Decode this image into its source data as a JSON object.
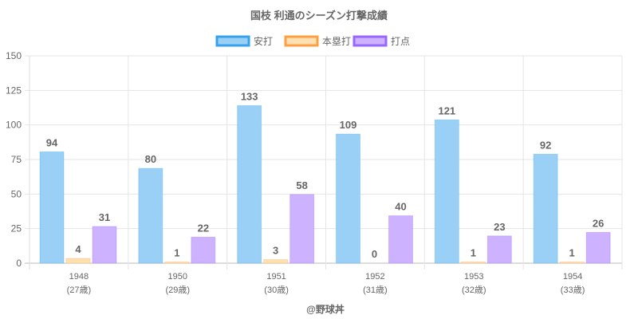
{
  "chart_data": {
    "type": "bar",
    "title": "国枝 利通のシーズン打撃成績",
    "categories": [
      "1948",
      "1950",
      "1951",
      "1952",
      "1953",
      "1954"
    ],
    "sublabels": [
      "(27歳)",
      "(29歳)",
      "(30歳)",
      "(31歳)",
      "(32歳)",
      "(33歳)"
    ],
    "series": [
      {
        "name": "安打",
        "values": [
          94,
          80,
          133,
          109,
          121,
          92
        ],
        "color": "#9ad0f5",
        "border": "#36a2eb"
      },
      {
        "name": "本塁打",
        "values": [
          4,
          1,
          3,
          0,
          1,
          1
        ],
        "color": "#ffe0b2",
        "border": "#ff9f40"
      },
      {
        "name": "打点",
        "values": [
          31,
          22,
          58,
          40,
          23,
          26
        ],
        "color": "#ccb2ff",
        "border": "#9966ff"
      }
    ],
    "ylim": [
      0,
      150
    ],
    "yticks": [
      0,
      25,
      50,
      75,
      100,
      125,
      150
    ],
    "legend_position": "top",
    "grid": true,
    "footer": "@野球丼"
  }
}
